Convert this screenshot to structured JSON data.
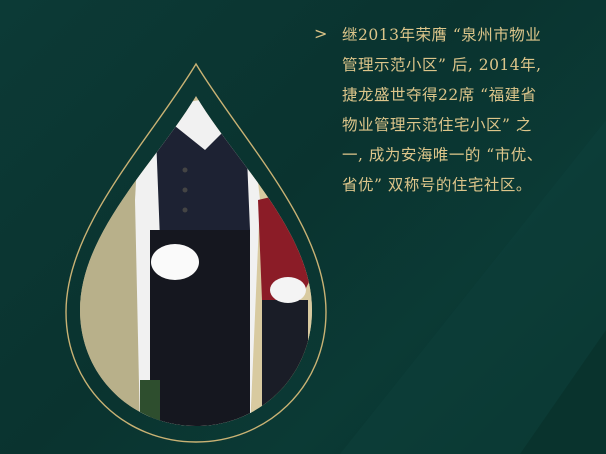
{
  "colors": {
    "background": "#0c3a36",
    "accent_gold": "#dcc58a"
  },
  "icons": {
    "bullet": "chevron-right-icon"
  },
  "text": {
    "lines": [
      "继2013年荣膺 “泉州市物业",
      "管理示范小区” 后, 2014年,",
      "捷龙盛世夺得22席 “福建省",
      "物业管理示范住宅小区” 之",
      "一, 成为安海唯一的 “市优、",
      "省优” 双称号的住宅社区。"
    ]
  },
  "photo": {
    "subject": "butlers-photo"
  }
}
